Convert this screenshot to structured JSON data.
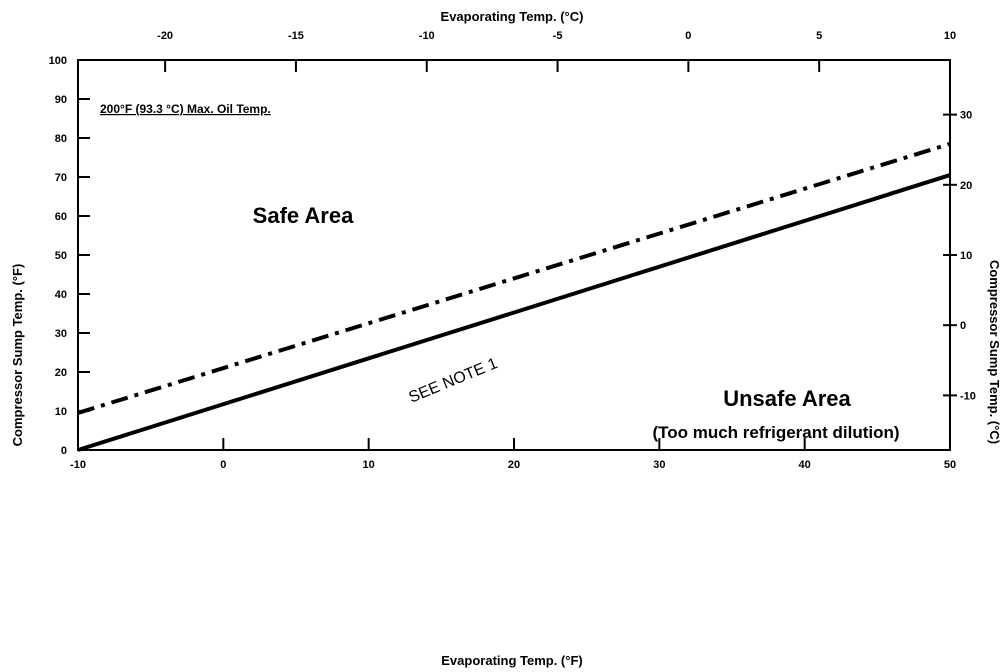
{
  "chart_data": {
    "type": "line",
    "x_bottom": {
      "label": "Evaporating Temp. (°F)",
      "range": [
        -10,
        50
      ],
      "ticks": [
        -10,
        0,
        10,
        20,
        30,
        40,
        50
      ]
    },
    "x_top": {
      "label": "Evaporating Temp. (°C)",
      "range": [
        -23.33,
        10
      ],
      "ticks": [
        -20,
        -15,
        -10,
        -5,
        0,
        5,
        10
      ]
    },
    "y_left": {
      "label": "Compressor Sump Temp. (°F)",
      "range": [
        0,
        100
      ],
      "ticks": [
        0,
        10,
        20,
        30,
        40,
        50,
        60,
        70,
        80,
        90,
        100
      ]
    },
    "y_right": {
      "label": "Compressor Sump Temp. (°C)",
      "range": [
        -17.78,
        37.78
      ],
      "ticks": [
        -10,
        0,
        10,
        20,
        30
      ]
    },
    "series": [
      {
        "style": "solid",
        "x": [
          -10,
          50
        ],
        "y": [
          0,
          70.5
        ]
      },
      {
        "style": "dash-dot",
        "x": [
          -10,
          50
        ],
        "y": [
          9.5,
          78.5
        ]
      }
    ],
    "annotations": {
      "max_oil": "200°F (93.3 °C) Max. Oil Temp.",
      "safe": "Safe Area",
      "unsafe": "Unsafe Area",
      "unsafe_sub": "(Too much refrigerant dilution)",
      "note": "SEE NOTE 1"
    },
    "grid": false
  }
}
